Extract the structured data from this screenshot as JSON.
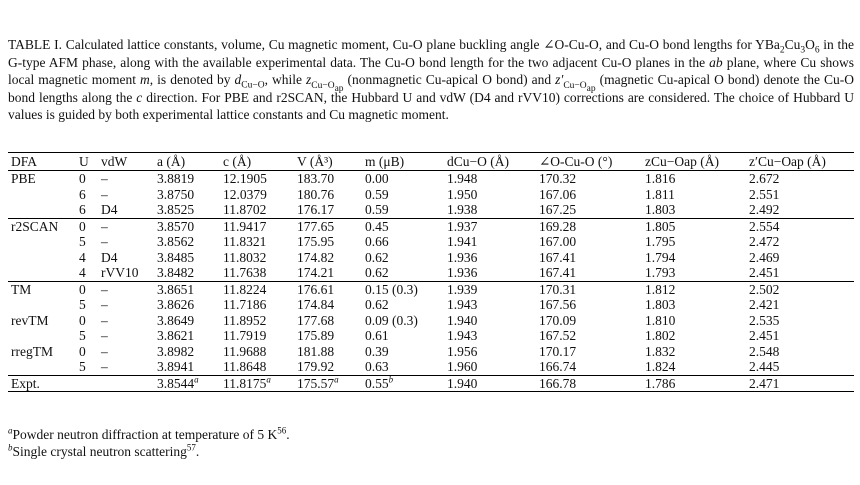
{
  "caption": {
    "label": "TABLE I.",
    "p1": " Calculated lattice constants, volume, Cu magnetic moment, Cu-O plane buckling angle ∠O-Cu-O, and Cu-O bond lengths for YBa",
    "f1": "2",
    "f2": "Cu",
    "f3": "3",
    "f4": "O",
    "f5": "6",
    "p2": " in the G-type AFM phase, along with the available experimental data. The Cu-O bond length for the two adjacent Cu-O planes in the ",
    "ab": "ab",
    "p3": " plane, where Cu shows local magnetic moment ",
    "m": "m",
    "p4": ", is denoted by ",
    "d_main": "d",
    "d_sub": "Cu−O",
    "p5": ", while ",
    "z_main": "z",
    "z_sub": "Cu−O",
    "z_subsub": "ap",
    "p6": " (nonmagnetic Cu-apical O bond) and ",
    "zp_main": "z′",
    "zp_sub": "Cu−O",
    "zp_subsub": "ap",
    "p7": " (magnetic Cu-apical O bond) denote the Cu-O bond lengths along the ",
    "c": "c",
    "p8": " direction. For PBE and r2SCAN, the Hubbard U and vdW (D4 and rVV10) corrections are considered. The choice of Hubbard U values is guided by both experimental lattice constants and Cu magnetic moment."
  },
  "headers": [
    "DFA",
    "U",
    "vdW",
    "a (Å)",
    "c (Å)",
    "V (Å³)",
    "m (μB)",
    "dCu−O (Å)",
    "∠O-Cu-O (°)",
    "zCu−Oap (Å)",
    "z′Cu−Oap (Å)"
  ],
  "rows": [
    {
      "group_start": true,
      "dfa": "PBE",
      "u": "0",
      "vdw": "–",
      "a": "3.8819",
      "c": "12.1905",
      "v": "183.70",
      "m": "0.00",
      "d": "1.948",
      "angle": "170.32",
      "z": "1.816",
      "zp": "2.672"
    },
    {
      "group_start": false,
      "dfa": "",
      "u": "6",
      "vdw": "–",
      "a": "3.8750",
      "c": "12.0379",
      "v": "180.76",
      "m": "0.59",
      "d": "1.950",
      "angle": "167.06",
      "z": "1.811",
      "zp": "2.551"
    },
    {
      "group_start": false,
      "dfa": "",
      "u": "6",
      "vdw": "D4",
      "a": "3.8525",
      "c": "11.8702",
      "v": "176.17",
      "m": "0.59",
      "d": "1.938",
      "angle": "167.25",
      "z": "1.803",
      "zp": "2.492"
    },
    {
      "group_start": true,
      "dfa": "r2SCAN",
      "u": "0",
      "vdw": "–",
      "a": "3.8570",
      "c": "11.9417",
      "v": "177.65",
      "m": "0.45",
      "d": "1.937",
      "angle": "169.28",
      "z": "1.805",
      "zp": "2.554"
    },
    {
      "group_start": false,
      "dfa": "",
      "u": "5",
      "vdw": "–",
      "a": "3.8562",
      "c": "11.8321",
      "v": "175.95",
      "m": "0.66",
      "d": "1.941",
      "angle": "167.00",
      "z": "1.795",
      "zp": "2.472"
    },
    {
      "group_start": false,
      "dfa": "",
      "u": "4",
      "vdw": "D4",
      "a": "3.8485",
      "c": "11.8032",
      "v": "174.82",
      "m": "0.62",
      "d": "1.936",
      "angle": "167.41",
      "z": "1.794",
      "zp": "2.469"
    },
    {
      "group_start": false,
      "dfa": "",
      "u": "4",
      "vdw": "rVV10",
      "a": "3.8482",
      "c": "11.7638",
      "v": "174.21",
      "m": "0.62",
      "d": "1.936",
      "angle": "167.41",
      "z": "1.793",
      "zp": "2.451"
    },
    {
      "group_start": true,
      "dfa": "TM",
      "u": "0",
      "vdw": "–",
      "a": "3.8651",
      "c": "11.8224",
      "v": "176.61",
      "m": "0.15 (0.3)",
      "d": "1.939",
      "angle": "170.31",
      "z": "1.812",
      "zp": "2.502"
    },
    {
      "group_start": false,
      "dfa": "",
      "u": "5",
      "vdw": "–",
      "a": "3.8626",
      "c": "11.7186",
      "v": "174.84",
      "m": "0.62",
      "d": "1.943",
      "angle": "167.56",
      "z": "1.803",
      "zp": "2.421"
    },
    {
      "group_start": false,
      "dfa": "revTM",
      "u": "0",
      "vdw": "–",
      "a": "3.8649",
      "c": "11.8952",
      "v": "177.68",
      "m": "0.09 (0.3)",
      "d": "1.940",
      "angle": "170.09",
      "z": "1.810",
      "zp": "2.535"
    },
    {
      "group_start": false,
      "dfa": "",
      "u": "5",
      "vdw": "–",
      "a": "3.8621",
      "c": "11.7919",
      "v": "175.89",
      "m": "0.61",
      "d": "1.943",
      "angle": "167.52",
      "z": "1.802",
      "zp": "2.451"
    },
    {
      "group_start": false,
      "dfa": "rregTM",
      "u": "0",
      "vdw": "–",
      "a": "3.8982",
      "c": "11.9688",
      "v": "181.88",
      "m": "0.39",
      "d": "1.956",
      "angle": "170.17",
      "z": "1.832",
      "zp": "2.548"
    },
    {
      "group_start": false,
      "dfa": "",
      "u": "5",
      "vdw": "–",
      "a": "3.8941",
      "c": "11.8648",
      "v": "179.92",
      "m": "0.63",
      "d": "1.960",
      "angle": "166.74",
      "z": "1.824",
      "zp": "2.445"
    }
  ],
  "expt": {
    "dfa": "Expt.",
    "a": "3.8544",
    "a_mark": "a",
    "c": "11.8175",
    "c_mark": "a",
    "v": "175.57",
    "v_mark": "a",
    "m": "0.55",
    "m_mark": "b",
    "d": "1.940",
    "angle": "166.78",
    "z": "1.786",
    "zp": "2.471"
  },
  "notes": [
    {
      "mark": "a",
      "text": "Powder neutron diffraction at temperature of 5 K",
      "ref": "56",
      "end": "."
    },
    {
      "mark": "b",
      "text": "Single crystal neutron scattering",
      "ref": "57",
      "end": "."
    }
  ]
}
